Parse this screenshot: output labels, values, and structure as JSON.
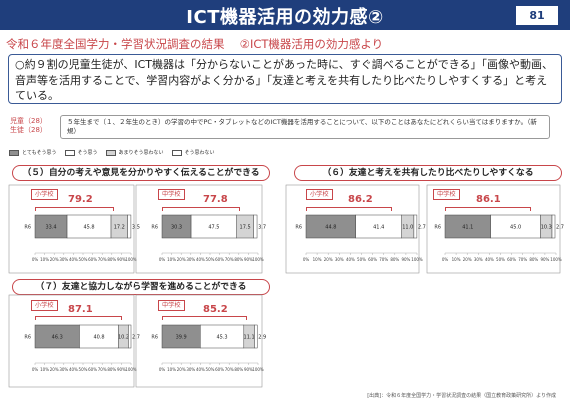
{
  "header": {
    "title": "ICT機器活用の効力感②",
    "page_number": "81"
  },
  "subtitle": "令和６年度全国学力・学習状況調査の結果　 ②ICT機器活用の効力感より",
  "summary": "○約９割の児童生徒が、ICT機器は「分からないことがあった時に、すぐ調べることができる」「画像や動画、音声等を活用することで、学習内容がよく分かる」「友達と考えを共有したり比べたりしやすくする」と考えている。",
  "target": {
    "line1": "児童（28）",
    "line2": "生徒（28）"
  },
  "question": "５年生まで（１、２年生のとき）の学習の中でPC・タブレットなどのICT機器を活用することについて、以下のことはあなたにどれくらい当てはまりますか。（新規）",
  "legend": [
    {
      "label": "とてもそう思う",
      "color": "#8f8f8f"
    },
    {
      "label": "そう思う",
      "color": "#ffffff"
    },
    {
      "label": "あまりそう思わない",
      "color": "#d4d4d4"
    },
    {
      "label": "そう思わない",
      "color": "#ffffff"
    }
  ],
  "sections": [
    {
      "label": "（５）自分の考えや意見を分かりやすく伝えることができる"
    },
    {
      "label": "（６）友達と考えを共有したり比べたりしやすくなる"
    },
    {
      "label": "（７）友達と協力しながら学習を進めることができる"
    }
  ],
  "chart_data": [
    {
      "type": "bar",
      "orientation": "horizontal",
      "stacked": true,
      "group": "（５）",
      "school": "小学校",
      "combined_label": "79.2",
      "categories": [
        "R6"
      ],
      "series": [
        {
          "name": "とてもそう思う",
          "values": [
            33.4
          ]
        },
        {
          "name": "そう思う",
          "values": [
            45.8
          ]
        },
        {
          "name": "あまりそう思わない",
          "values": [
            17.2
          ]
        },
        {
          "name": "そう思わない",
          "values": [
            3.5
          ]
        }
      ],
      "xlim": [
        0,
        100
      ],
      "ticks": [
        "0%",
        "10%",
        "20%",
        "30%",
        "40%",
        "50%",
        "60%",
        "70%",
        "80%",
        "90%",
        "100%"
      ]
    },
    {
      "type": "bar",
      "orientation": "horizontal",
      "stacked": true,
      "group": "（５）",
      "school": "中学校",
      "combined_label": "77.8",
      "categories": [
        "R6"
      ],
      "series": [
        {
          "name": "とてもそう思う",
          "values": [
            30.3
          ]
        },
        {
          "name": "そう思う",
          "values": [
            47.5
          ]
        },
        {
          "name": "あまりそう思わない",
          "values": [
            17.5
          ]
        },
        {
          "name": "そう思わない",
          "values": [
            3.7
          ]
        }
      ],
      "xlim": [
        0,
        100
      ],
      "ticks": [
        "0%",
        "10%",
        "20%",
        "30%",
        "40%",
        "50%",
        "60%",
        "70%",
        "80%",
        "90%",
        "100%"
      ]
    },
    {
      "type": "bar",
      "orientation": "horizontal",
      "stacked": true,
      "group": "（６）",
      "school": "小学校",
      "combined_label": "86.2",
      "categories": [
        "R6"
      ],
      "series": [
        {
          "name": "とてもそう思う",
          "values": [
            44.8
          ]
        },
        {
          "name": "そう思う",
          "values": [
            41.4
          ]
        },
        {
          "name": "あまりそう思わない",
          "values": [
            11.0
          ]
        },
        {
          "name": "そう思わない",
          "values": [
            2.7
          ]
        }
      ],
      "xlim": [
        0,
        100
      ],
      "ticks": [
        "0%",
        "10%",
        "20%",
        "30%",
        "40%",
        "50%",
        "60%",
        "70%",
        "80%",
        "90%",
        "100%"
      ]
    },
    {
      "type": "bar",
      "orientation": "horizontal",
      "stacked": true,
      "group": "（６）",
      "school": "中学校",
      "combined_label": "86.1",
      "categories": [
        "R6"
      ],
      "series": [
        {
          "name": "とてもそう思う",
          "values": [
            41.1
          ]
        },
        {
          "name": "そう思う",
          "values": [
            45.0
          ]
        },
        {
          "name": "あまりそう思わない",
          "values": [
            10.3
          ]
        },
        {
          "name": "そう思わない",
          "values": [
            2.7
          ]
        }
      ],
      "xlim": [
        0,
        100
      ],
      "ticks": [
        "0%",
        "10%",
        "20%",
        "30%",
        "40%",
        "50%",
        "60%",
        "70%",
        "80%",
        "90%",
        "100%"
      ]
    },
    {
      "type": "bar",
      "orientation": "horizontal",
      "stacked": true,
      "group": "（７）",
      "school": "小学校",
      "combined_label": "87.1",
      "categories": [
        "R6"
      ],
      "series": [
        {
          "name": "とてもそう思う",
          "values": [
            46.3
          ]
        },
        {
          "name": "そう思う",
          "values": [
            40.8
          ]
        },
        {
          "name": "あまりそう思わない",
          "values": [
            10.2
          ]
        },
        {
          "name": "そう思わない",
          "values": [
            2.7
          ]
        }
      ],
      "xlim": [
        0,
        100
      ],
      "ticks": [
        "0%",
        "10%",
        "20%",
        "30%",
        "40%",
        "50%",
        "60%",
        "70%",
        "80%",
        "90%",
        "100%"
      ]
    },
    {
      "type": "bar",
      "orientation": "horizontal",
      "stacked": true,
      "group": "（７）",
      "school": "中学校",
      "combined_label": "85.2",
      "categories": [
        "R6"
      ],
      "series": [
        {
          "name": "とてもそう思う",
          "values": [
            39.9
          ]
        },
        {
          "name": "そう思う",
          "values": [
            45.3
          ]
        },
        {
          "name": "あまりそう思わない",
          "values": [
            11.1
          ]
        },
        {
          "name": "そう思わない",
          "values": [
            2.9
          ]
        }
      ],
      "xlim": [
        0,
        100
      ],
      "ticks": [
        "0%",
        "10%",
        "20%",
        "30%",
        "40%",
        "50%",
        "60%",
        "70%",
        "80%",
        "90%",
        "100%"
      ]
    }
  ],
  "source": "[出典]：令和６年度全国学力・学習状況調査の結果（国立教育政策研究所）より作成"
}
